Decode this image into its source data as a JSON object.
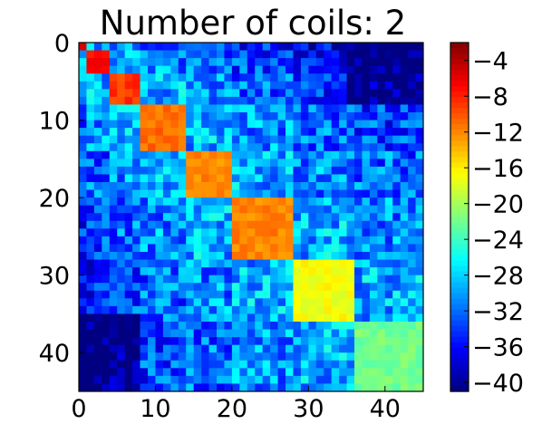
{
  "chart_data": {
    "type": "heatmap",
    "title": "Number of coils: 2",
    "xlabel": "",
    "ylabel": "",
    "size": 45,
    "x_ticks": [
      0,
      10,
      20,
      30,
      40
    ],
    "y_ticks": [
      0,
      10,
      20,
      30,
      40
    ],
    "xlim": [
      0,
      45
    ],
    "ylim": [
      45,
      0
    ],
    "colormap": "jet",
    "vmin": -41,
    "vmax": -2,
    "colorbar": {
      "ticks": [
        -4,
        -8,
        -12,
        -16,
        -20,
        -24,
        -28,
        -32,
        -36,
        -40
      ],
      "tick_labels": [
        "−4",
        "−8",
        "−12",
        "−16",
        "−20",
        "−24",
        "−28",
        "−32",
        "−36",
        "−40"
      ]
    },
    "blocks": [
      {
        "start": 0,
        "end": 1,
        "diag_value": -4
      },
      {
        "start": 1,
        "end": 4,
        "diag_value": -7
      },
      {
        "start": 4,
        "end": 8,
        "diag_value": -9
      },
      {
        "start": 8,
        "end": 14,
        "diag_value": -11
      },
      {
        "start": 14,
        "end": 20,
        "diag_value": -12
      },
      {
        "start": 20,
        "end": 28,
        "diag_value": -12
      },
      {
        "start": 28,
        "end": 36,
        "diag_value": -17
      },
      {
        "start": 36,
        "end": 45,
        "diag_value": -22
      }
    ],
    "off_diagonal_typical": -30,
    "corner_minimum": -40
  }
}
